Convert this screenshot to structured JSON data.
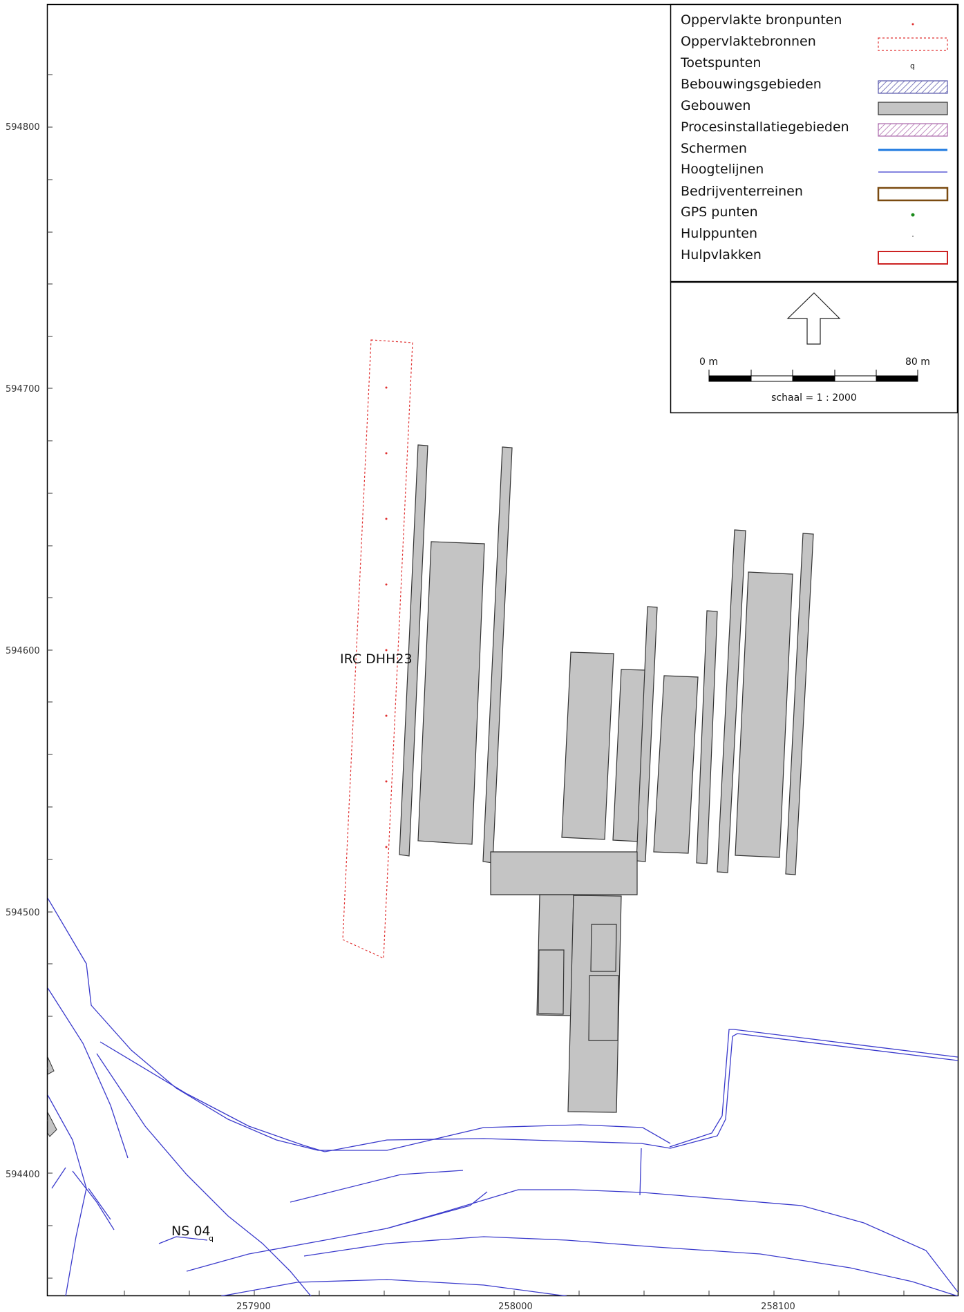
{
  "map": {
    "x_ticks": [
      "257900",
      "258000",
      "258100"
    ],
    "y_ticks": [
      "594800",
      "594700",
      "594600",
      "594500",
      "594400"
    ],
    "labels": {
      "source_label": "IRC DHH23",
      "test_point_label": "NS 04"
    }
  },
  "legend": {
    "items": [
      {
        "label": "Oppervlakte bronpunten",
        "symbol": "red-dot-icon"
      },
      {
        "label": "Oppervlaktebronnen",
        "symbol": "red-dashed-rect-icon"
      },
      {
        "label": "Toetspunten",
        "symbol": "test-point-icon"
      },
      {
        "label": "Bebouwingsgebieden",
        "symbol": "blue-hatched-rect-icon"
      },
      {
        "label": "Gebouwen",
        "symbol": "gray-rect-icon"
      },
      {
        "label": "Procesinstallatiegebieden",
        "symbol": "purple-hatched-rect-icon"
      },
      {
        "label": "Schermen",
        "symbol": "blue-thick-line-icon"
      },
      {
        "label": "Hoogtelijnen",
        "symbol": "blue-thin-line-icon"
      },
      {
        "label": "Bedrijventerreinen",
        "symbol": "brown-rect-icon"
      },
      {
        "label": "GPS punten",
        "symbol": "green-dot-icon"
      },
      {
        "label": "Hulppunten",
        "symbol": "small-dot-icon"
      },
      {
        "label": "Hulpvlakken",
        "symbol": "red-rect-icon"
      }
    ]
  },
  "scalebar": {
    "start_label": "0 m",
    "end_label": "80 m",
    "scale_text": "schaal = 1 : 2000"
  },
  "colors": {
    "building_fill": "#c4c4c4",
    "contour": "#3a3acc",
    "source": "#e03030"
  }
}
